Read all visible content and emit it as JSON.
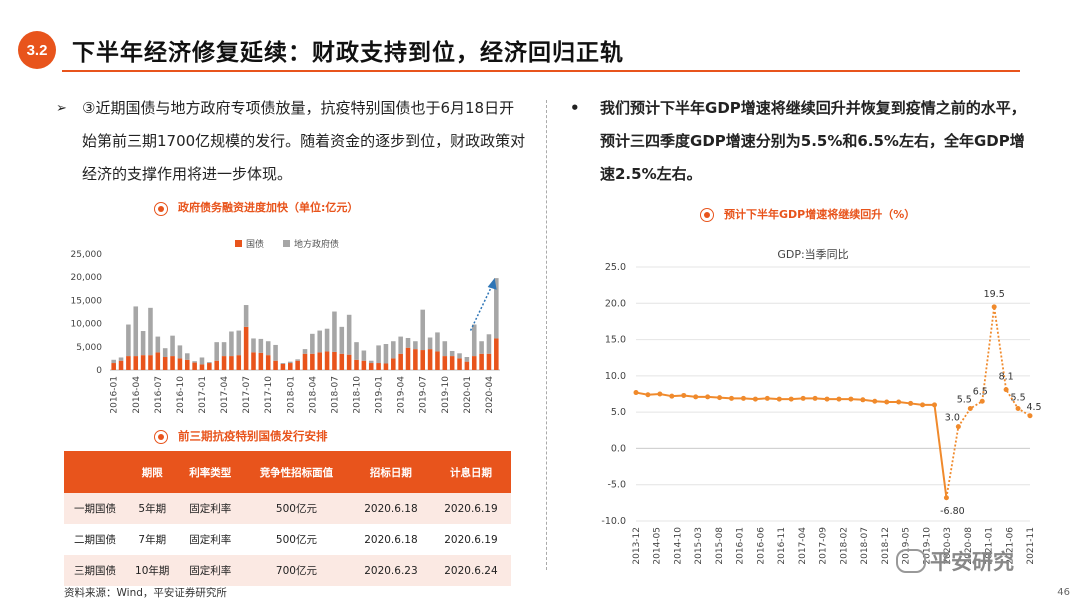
{
  "header": {
    "badge": "3.2",
    "title": "下半年经济修复延续：财政支持到位，经济回归正轨"
  },
  "left_para": {
    "bullet": "➢",
    "text": "③近期国债与地方政府专项债放量，抗疫特别国债也于6月18日开始第前三期1700亿规模的发行。随着资金的逐步到位，财政政策对经济的支撑作用将进一步体现。"
  },
  "right_para": {
    "bullet": "•",
    "text": "我们预计下半年GDP增速将继续回升并恢复到疫情之前的水平，预计三四季度GDP增速分别为5.5%和6.5%左右，全年GDP增速2.5%左右。"
  },
  "bar_section_title": "政府债务融资进度加快（单位:亿元）",
  "table_section_title": "前三期抗疫特别国债发行安排",
  "line_section_title": "预计下半年GDP增速将继续回升（%）",
  "issue_table": {
    "headers": [
      "",
      "期限",
      "利率类型",
      "竞争性招标面值",
      "招标日期",
      "计息日期"
    ],
    "rows": [
      [
        "一期国债",
        "5年期",
        "固定利率",
        "500亿元",
        "2020.6.18",
        "2020.6.19"
      ],
      [
        "二期国债",
        "7年期",
        "固定利率",
        "500亿元",
        "2020.6.18",
        "2020.6.19"
      ],
      [
        "三期国债",
        "10年期",
        "固定利率",
        "700亿元",
        "2020.6.23",
        "2020.6.24"
      ]
    ]
  },
  "source": "资料来源：Wind，平安证券研究所",
  "page_number": "46",
  "watermark": "平安研究",
  "chart_data": [
    {
      "type": "bar",
      "stacked": true,
      "title": "政府债务融资进度加快（单位:亿元）",
      "legend": [
        "国债",
        "地方政府债"
      ],
      "colors": [
        "#e8541c",
        "#a6a6a6"
      ],
      "ylim": [
        0,
        25000
      ],
      "yticks": [
        0,
        5000,
        10000,
        15000,
        20000,
        25000
      ],
      "ytick_labels": [
        "0",
        "5,000",
        "10,000",
        "15,000",
        "20,000",
        "25,000"
      ],
      "xtick_labels": [
        "2016-01",
        "2016-04",
        "2016-07",
        "2016-10",
        "2017-01",
        "2017-04",
        "2017-07",
        "2017-10",
        "2018-01",
        "2018-04",
        "2018-07",
        "2018-10",
        "2019-01",
        "2019-04",
        "2019-07",
        "2019-10",
        "2020-01",
        "2020-04"
      ],
      "categories": [
        "2016-01",
        "2016-02",
        "2016-03",
        "2016-04",
        "2016-05",
        "2016-06",
        "2016-07",
        "2016-08",
        "2016-09",
        "2016-10",
        "2016-11",
        "2016-12",
        "2017-01",
        "2017-02",
        "2017-03",
        "2017-04",
        "2017-05",
        "2017-06",
        "2017-07",
        "2017-08",
        "2017-09",
        "2017-10",
        "2017-11",
        "2017-12",
        "2018-01",
        "2018-02",
        "2018-03",
        "2018-04",
        "2018-05",
        "2018-06",
        "2018-07",
        "2018-08",
        "2018-09",
        "2018-10",
        "2018-11",
        "2018-12",
        "2019-01",
        "2019-02",
        "2019-03",
        "2019-04",
        "2019-05",
        "2019-06",
        "2019-07",
        "2019-08",
        "2019-09",
        "2019-10",
        "2019-11",
        "2019-12",
        "2020-01",
        "2020-02",
        "2020-03",
        "2020-04",
        "2020-05"
      ],
      "series": [
        {
          "name": "国债",
          "values": [
            1500,
            2000,
            3000,
            3000,
            3200,
            3200,
            3800,
            2800,
            3000,
            2500,
            2200,
            1600,
            1200,
            1500,
            2000,
            3000,
            3000,
            3200,
            9300,
            3800,
            3700,
            3200,
            2000,
            1300,
            1500,
            2000,
            3500,
            3500,
            3800,
            4000,
            3900,
            3500,
            3300,
            2200,
            2000,
            1500,
            1500,
            1400,
            2500,
            3500,
            4800,
            4500,
            4300,
            4500,
            4000,
            3000,
            3000,
            2500,
            1800,
            3000,
            3500,
            3500,
            6800
          ]
        },
        {
          "name": "地方政府债",
          "values": [
            700,
            700,
            6800,
            10700,
            5200,
            10200,
            3400,
            1900,
            4400,
            2800,
            1400,
            300,
            1500,
            200,
            4000,
            3000,
            5300,
            5300,
            4700,
            3000,
            3000,
            3000,
            3400,
            200,
            300,
            300,
            1000,
            4300,
            4700,
            4900,
            8700,
            5800,
            8600,
            3800,
            2200,
            500,
            3800,
            4200,
            3700,
            3700,
            2100,
            1700,
            8700,
            2500,
            4100,
            3200,
            1100,
            1100,
            1000,
            6800,
            2700,
            4200,
            13000
          ]
        }
      ],
      "annotation": "dotted arrow indicating increase"
    },
    {
      "type": "line",
      "title": "GDP:当季同比",
      "ylim": [
        -10,
        25
      ],
      "yticks": [
        -10,
        -5,
        0,
        5,
        10,
        15,
        20,
        25
      ],
      "ytick_labels": [
        "-10.0",
        "-5.0",
        "0.0",
        "5.0",
        "10.0",
        "15.0",
        "20.0",
        "25.0"
      ],
      "xtick_labels": [
        "2013-12",
        "2014-05",
        "2014-10",
        "2015-03",
        "2015-08",
        "2016-01",
        "2016-06",
        "2016-11",
        "2017-04",
        "2017-09",
        "2018-02",
        "2018-07",
        "2018-12",
        "2019-05",
        "2019-10",
        "2020-03",
        "2020-08",
        "2021-01",
        "2021-06",
        "2021-11"
      ],
      "series": [
        {
          "name": "actual",
          "style": "solid",
          "color": "#f08a2c",
          "values": [
            7.7,
            7.4,
            7.5,
            7.2,
            7.3,
            7.1,
            7.1,
            7.0,
            6.9,
            6.9,
            6.8,
            6.9,
            6.8,
            6.8,
            6.9,
            6.9,
            6.8,
            6.8,
            6.8,
            6.7,
            6.5,
            6.4,
            6.4,
            6.2,
            6.0,
            6.0,
            -6.8
          ]
        },
        {
          "name": "forecast",
          "style": "dotted",
          "color": "#f08a2c",
          "start_index": 26,
          "values": [
            -6.8,
            3.0,
            5.5,
            6.5,
            19.5,
            8.1,
            5.5,
            4.5
          ]
        }
      ],
      "data_labels": [
        "-6.80",
        "3.0",
        "5.5",
        "6.5",
        "19.5",
        "8.1",
        "5.5",
        "4.5"
      ]
    }
  ]
}
